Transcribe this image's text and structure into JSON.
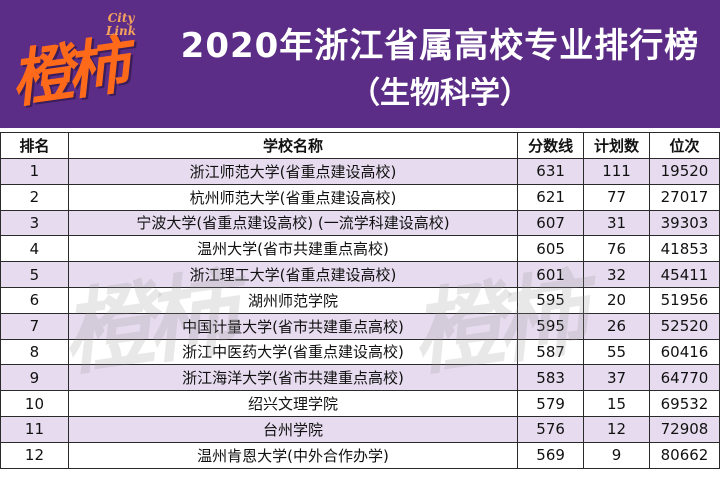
{
  "header": {
    "logo_text": "橙柿",
    "logo_sub_line1": "City",
    "logo_sub_line2": "Link",
    "title": "2020年浙江省属高校专业排行榜",
    "subtitle": "（生物科学）"
  },
  "table": {
    "columns": [
      "排名",
      "学校名称",
      "分数线",
      "计划数",
      "位次"
    ],
    "rows": [
      [
        "1",
        "浙江师范大学(省重点建设高校)",
        "631",
        "111",
        "19520"
      ],
      [
        "2",
        "杭州师范大学(省重点建设高校)",
        "621",
        "77",
        "27017"
      ],
      [
        "3",
        "宁波大学(省重点建设高校) (一流学科建设高校)",
        "607",
        "31",
        "39303"
      ],
      [
        "4",
        "温州大学(省市共建重点高校)",
        "605",
        "76",
        "41853"
      ],
      [
        "5",
        "浙江理工大学(省重点建设高校)",
        "601",
        "32",
        "45411"
      ],
      [
        "6",
        "湖州师范学院",
        "595",
        "20",
        "51956"
      ],
      [
        "7",
        "中国计量大学(省市共建重点高校)",
        "595",
        "26",
        "52520"
      ],
      [
        "8",
        "浙江中医药大学(省重点建设高校)",
        "587",
        "55",
        "60416"
      ],
      [
        "9",
        "浙江海洋大学(省市共建重点高校)",
        "583",
        "37",
        "64770"
      ],
      [
        "10",
        "绍兴文理学院",
        "579",
        "15",
        "69532"
      ],
      [
        "11",
        "台州学院",
        "576",
        "12",
        "72908"
      ],
      [
        "12",
        "温州肯恩大学(中外合作办学)",
        "569",
        "9",
        "80662"
      ]
    ]
  },
  "watermark": "橙柿"
}
